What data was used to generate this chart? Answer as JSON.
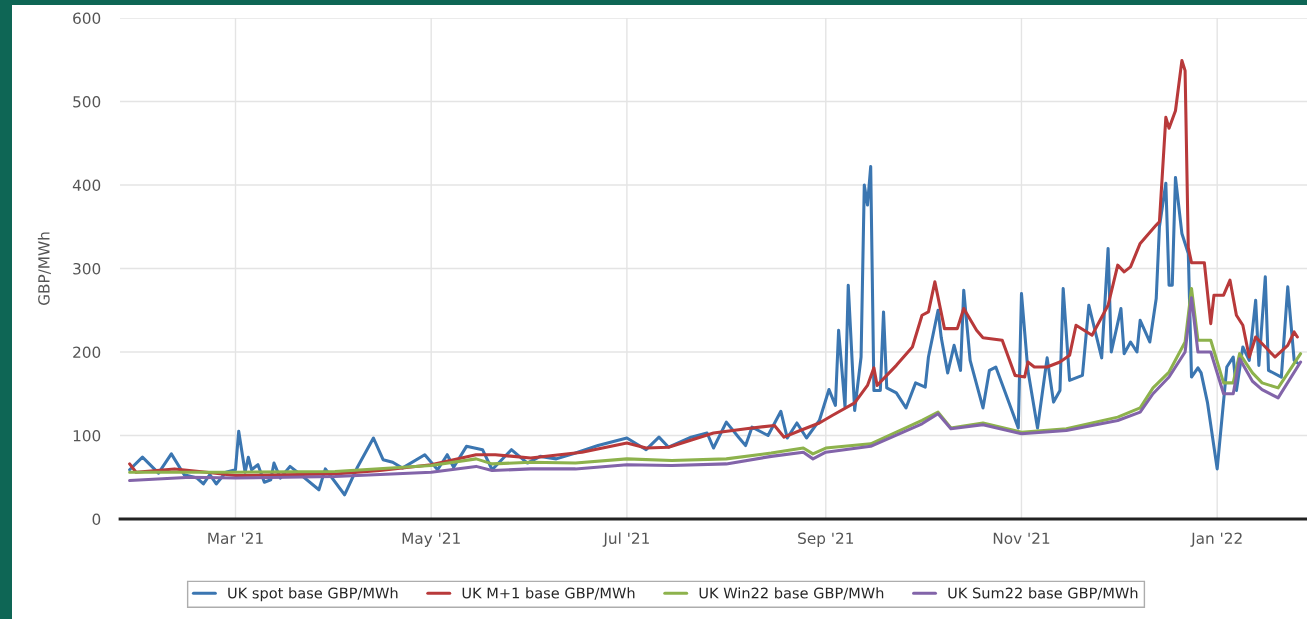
{
  "chart_data": {
    "type": "line",
    "ylabel": "GBP/MWh",
    "xlim": [
      "2021-01-24",
      "2022-01-29"
    ],
    "xticks": [
      {
        "value": "2021-03-01",
        "label": "Mar '21"
      },
      {
        "value": "2021-05-01",
        "label": "May '21"
      },
      {
        "value": "2021-07-01",
        "label": "Jul '21"
      },
      {
        "value": "2021-09-01",
        "label": "Sep '21"
      },
      {
        "value": "2021-11-01",
        "label": "Nov '21"
      },
      {
        "value": "2022-01-01",
        "label": "Jan '22"
      }
    ],
    "ylim": [
      0,
      600
    ],
    "yticks": [
      0,
      100,
      200,
      300,
      400,
      500,
      600
    ],
    "grid": true,
    "legend": "bottom",
    "marker": "none",
    "line_style": "solid",
    "series": [
      {
        "name": "UK spot base GBP/MWh",
        "color": "#3b76b1",
        "x": [
          "2021-01-27",
          "2021-01-31",
          "2021-02-05",
          "2021-02-09",
          "2021-02-13",
          "2021-02-17",
          "2021-02-19",
          "2021-02-21",
          "2021-02-23",
          "2021-02-26",
          "2021-03-01",
          "2021-03-02",
          "2021-03-04",
          "2021-03-05",
          "2021-03-06",
          "2021-03-08",
          "2021-03-10",
          "2021-03-12",
          "2021-03-13",
          "2021-03-15",
          "2021-03-18",
          "2021-03-21",
          "2021-03-27",
          "2021-03-29",
          "2021-04-04",
          "2021-04-08",
          "2021-04-13",
          "2021-04-16",
          "2021-04-19",
          "2021-04-22",
          "2021-04-29",
          "2021-05-03",
          "2021-05-06",
          "2021-05-08",
          "2021-05-12",
          "2021-05-17",
          "2021-05-20",
          "2021-05-26",
          "2021-05-31",
          "2021-06-04",
          "2021-06-09",
          "2021-06-15",
          "2021-06-22",
          "2021-07-01",
          "2021-07-07",
          "2021-07-11",
          "2021-07-14",
          "2021-07-21",
          "2021-07-26",
          "2021-07-28",
          "2021-08-01",
          "2021-08-05",
          "2021-08-07",
          "2021-08-09",
          "2021-08-14",
          "2021-08-18",
          "2021-08-20",
          "2021-08-23",
          "2021-08-26",
          "2021-08-30",
          "2021-09-02",
          "2021-09-04",
          "2021-09-05",
          "2021-09-07",
          "2021-09-08",
          "2021-09-10",
          "2021-09-12",
          "2021-09-13",
          "2021-09-14",
          "2021-09-15",
          "2021-09-16",
          "2021-09-18",
          "2021-09-19",
          "2021-09-20",
          "2021-09-23",
          "2021-09-26",
          "2021-09-29",
          "2021-10-02",
          "2021-10-03",
          "2021-10-06",
          "2021-10-07",
          "2021-10-09",
          "2021-10-11",
          "2021-10-13",
          "2021-10-14",
          "2021-10-16",
          "2021-10-20",
          "2021-10-22",
          "2021-10-24",
          "2021-10-27",
          "2021-10-31",
          "2021-11-01",
          "2021-11-03",
          "2021-11-06",
          "2021-11-09",
          "2021-11-11",
          "2021-11-13",
          "2021-11-14",
          "2021-11-16",
          "2021-11-20",
          "2021-11-22",
          "2021-11-26",
          "2021-11-28",
          "2021-11-29",
          "2021-12-02",
          "2021-12-03",
          "2021-12-05",
          "2021-12-07",
          "2021-12-08",
          "2021-12-11",
          "2021-12-13",
          "2021-12-14",
          "2021-12-16",
          "2021-12-17",
          "2021-12-18",
          "2021-12-19",
          "2021-12-21",
          "2021-12-23",
          "2021-12-24",
          "2021-12-26",
          "2021-12-27",
          "2021-12-29",
          "2022-01-01",
          "2022-01-04",
          "2022-01-06",
          "2022-01-07",
          "2022-01-09",
          "2022-01-11",
          "2022-01-13",
          "2022-01-14",
          "2022-01-16",
          "2022-01-17",
          "2022-01-21",
          "2022-01-23",
          "2022-01-25",
          "2022-01-26"
        ],
        "values": [
          59,
          74,
          55,
          78,
          53,
          49,
          42,
          53,
          42,
          56,
          59,
          105,
          56,
          74,
          59,
          65,
          44,
          47,
          67,
          49,
          63,
          54,
          35,
          60,
          29,
          62,
          97,
          71,
          68,
          61,
          77,
          59,
          77,
          62,
          87,
          83,
          59,
          83,
          67,
          75,
          72,
          79,
          88,
          97,
          83,
          98,
          86,
          98,
          103,
          85,
          116,
          97,
          88,
          110,
          100,
          129,
          97,
          115,
          97,
          118,
          155,
          136,
          226,
          134,
          280,
          130,
          194,
          400,
          376,
          422,
          154,
          154,
          248,
          157,
          151,
          133,
          163,
          158,
          194,
          250,
          217,
          175,
          208,
          178,
          274,
          190,
          133,
          178,
          182,
          151,
          109,
          270,
          178,
          109,
          193,
          140,
          154,
          276,
          166,
          172,
          256,
          193,
          324,
          200,
          252,
          198,
          212,
          200,
          238,
          212,
          264,
          350,
          402,
          280,
          280,
          409,
          342,
          318,
          170,
          181,
          175,
          139,
          60,
          182,
          194,
          154,
          206,
          190,
          262,
          184,
          290,
          178,
          170,
          278,
          190,
          187
        ]
      },
      {
        "name": "UK M+1 base GBP/MWh",
        "color": "#b8393a",
        "x": [
          "2021-01-27",
          "2021-01-29",
          "2021-02-10",
          "2021-02-20",
          "2021-03-01",
          "2021-03-15",
          "2021-04-01",
          "2021-04-15",
          "2021-05-01",
          "2021-05-15",
          "2021-05-21",
          "2021-06-01",
          "2021-06-17",
          "2021-07-01",
          "2021-07-07",
          "2021-07-14",
          "2021-07-28",
          "2021-08-09",
          "2021-08-16",
          "2021-08-19",
          "2021-08-24",
          "2021-08-30",
          "2021-09-03",
          "2021-09-10",
          "2021-09-14",
          "2021-09-16",
          "2021-09-17",
          "2021-09-23",
          "2021-09-28",
          "2021-10-01",
          "2021-10-03",
          "2021-10-05",
          "2021-10-08",
          "2021-10-12",
          "2021-10-14",
          "2021-10-18",
          "2021-10-20",
          "2021-10-26",
          "2021-10-30",
          "2021-11-02",
          "2021-11-03",
          "2021-11-05",
          "2021-11-09",
          "2021-11-13",
          "2021-11-16",
          "2021-11-18",
          "2021-11-23",
          "2021-11-28",
          "2021-12-01",
          "2021-12-03",
          "2021-12-05",
          "2021-12-08",
          "2021-12-13",
          "2021-12-14",
          "2021-12-16",
          "2021-12-17",
          "2021-12-19",
          "2021-12-21",
          "2021-12-22",
          "2021-12-23",
          "2021-12-24",
          "2021-12-28",
          "2021-12-30",
          "2021-12-31",
          "2022-01-03",
          "2022-01-05",
          "2022-01-07",
          "2022-01-09",
          "2022-01-11",
          "2022-01-13",
          "2022-01-16",
          "2022-01-19",
          "2022-01-23",
          "2022-01-25",
          "2022-01-26"
        ],
        "values": [
          66,
          56,
          60,
          56,
          52,
          53,
          54,
          58,
          65,
          77,
          77,
          73,
          80,
          91,
          85,
          86,
          103,
          109,
          112,
          98,
          106,
          115,
          124,
          139,
          160,
          181,
          160,
          184,
          206,
          244,
          248,
          284,
          228,
          228,
          252,
          226,
          217,
          214,
          172,
          170,
          188,
          182,
          182,
          188,
          196,
          232,
          220,
          256,
          304,
          296,
          302,
          330,
          352,
          356,
          481,
          468,
          489,
          549,
          537,
          325,
          307,
          307,
          234,
          268,
          268,
          286,
          244,
          232,
          194,
          218,
          206,
          194,
          208,
          224,
          218
        ]
      },
      {
        "name": "UK Win22 base GBP/MWh",
        "color": "#8db24c",
        "x": [
          "2021-01-27",
          "2021-03-01",
          "2021-04-01",
          "2021-05-01",
          "2021-05-15",
          "2021-05-20",
          "2021-06-01",
          "2021-06-15",
          "2021-07-01",
          "2021-07-15",
          "2021-08-01",
          "2021-08-15",
          "2021-08-25",
          "2021-08-28",
          "2021-09-01",
          "2021-09-15",
          "2021-10-01",
          "2021-10-06",
          "2021-10-10",
          "2021-10-20",
          "2021-11-01",
          "2021-11-15",
          "2021-12-01",
          "2021-12-08",
          "2021-12-12",
          "2021-12-17",
          "2021-12-22",
          "2021-12-24",
          "2021-12-26",
          "2021-12-30",
          "2022-01-03",
          "2022-01-06",
          "2022-01-08",
          "2022-01-12",
          "2022-01-15",
          "2022-01-20",
          "2022-01-27"
        ],
        "values": [
          56,
          56,
          57,
          64,
          72,
          66,
          68,
          67,
          72,
          70,
          72,
          79,
          85,
          78,
          85,
          90,
          118,
          128,
          109,
          115,
          104,
          108,
          122,
          133,
          157,
          176,
          212,
          276,
          214,
          214,
          163,
          163,
          198,
          175,
          163,
          157,
          198
        ]
      },
      {
        "name": "UK Sum22 base GBP/MWh",
        "color": "#8264a9",
        "x": [
          "2021-01-27",
          "2021-02-15",
          "2021-03-01",
          "2021-04-01",
          "2021-05-01",
          "2021-05-15",
          "2021-05-20",
          "2021-06-01",
          "2021-06-15",
          "2021-07-01",
          "2021-07-15",
          "2021-08-01",
          "2021-08-15",
          "2021-08-25",
          "2021-08-28",
          "2021-09-01",
          "2021-09-15",
          "2021-10-01",
          "2021-10-06",
          "2021-10-10",
          "2021-10-20",
          "2021-11-01",
          "2021-11-15",
          "2021-12-01",
          "2021-12-08",
          "2021-12-12",
          "2021-12-17",
          "2021-12-22",
          "2021-12-24",
          "2021-12-26",
          "2021-12-30",
          "2022-01-03",
          "2022-01-06",
          "2022-01-08",
          "2022-01-12",
          "2022-01-15",
          "2022-01-20",
          "2022-01-27"
        ],
        "values": [
          46,
          50,
          49,
          51,
          56,
          63,
          58,
          60,
          60,
          65,
          64,
          66,
          75,
          80,
          72,
          80,
          87,
          114,
          126,
          108,
          113,
          102,
          106,
          118,
          128,
          150,
          170,
          200,
          265,
          200,
          200,
          150,
          150,
          192,
          165,
          155,
          145,
          188
        ]
      }
    ]
  }
}
